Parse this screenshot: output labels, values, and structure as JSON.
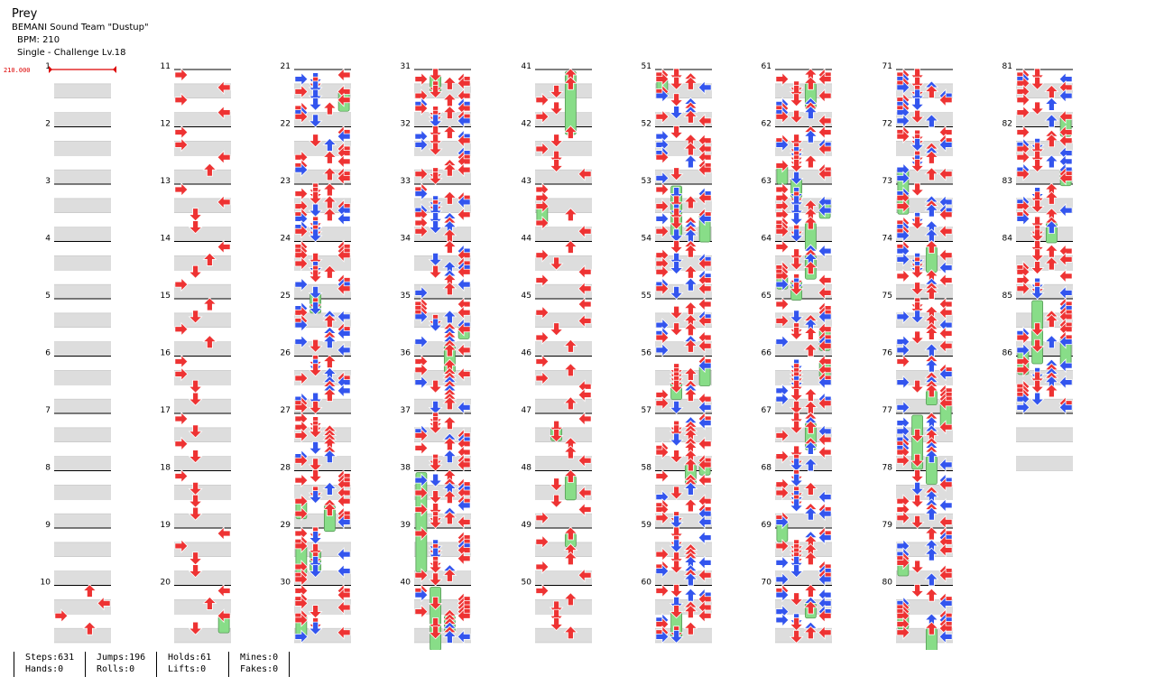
{
  "song": {
    "title": "Prey",
    "artist": "BEMANI Sound Team \"Dustup\"",
    "bpm_text": "BPM: 210",
    "difficulty_text": "Single - Challenge  Lv.18"
  },
  "bpm_marker": {
    "label": "210.000",
    "measure": 1
  },
  "measures": {
    "first": 1,
    "last": 86,
    "columns": [
      {
        "from": 1,
        "to": 10
      },
      {
        "from": 11,
        "to": 20
      },
      {
        "from": 21,
        "to": 30
      },
      {
        "from": 31,
        "to": 40
      },
      {
        "from": 41,
        "to": 50
      },
      {
        "from": 51,
        "to": 60
      },
      {
        "from": 61,
        "to": 70
      },
      {
        "from": 71,
        "to": 80
      },
      {
        "from": 81,
        "to": 86
      }
    ],
    "extra_empty_measures_last_column": 1
  },
  "colors": {
    "note_red": "#ee3333",
    "note_blue": "#3355ee",
    "hold_green": "#88dd88",
    "hold_outline": "#559955",
    "stripe_gray": "#dddddd",
    "measure_line": "#000000",
    "bpm_red": "#dd0000"
  },
  "stats": {
    "col1": {
      "a": "Steps:631",
      "b": "Hands:0"
    },
    "col2": {
      "a": "Jumps:196",
      "b": "Rolls:0"
    },
    "col3": {
      "a": "Holds:61",
      "b": "Lifts:0"
    },
    "col4": {
      "a": "Mines:0",
      "b": "Fakes:0"
    }
  }
}
